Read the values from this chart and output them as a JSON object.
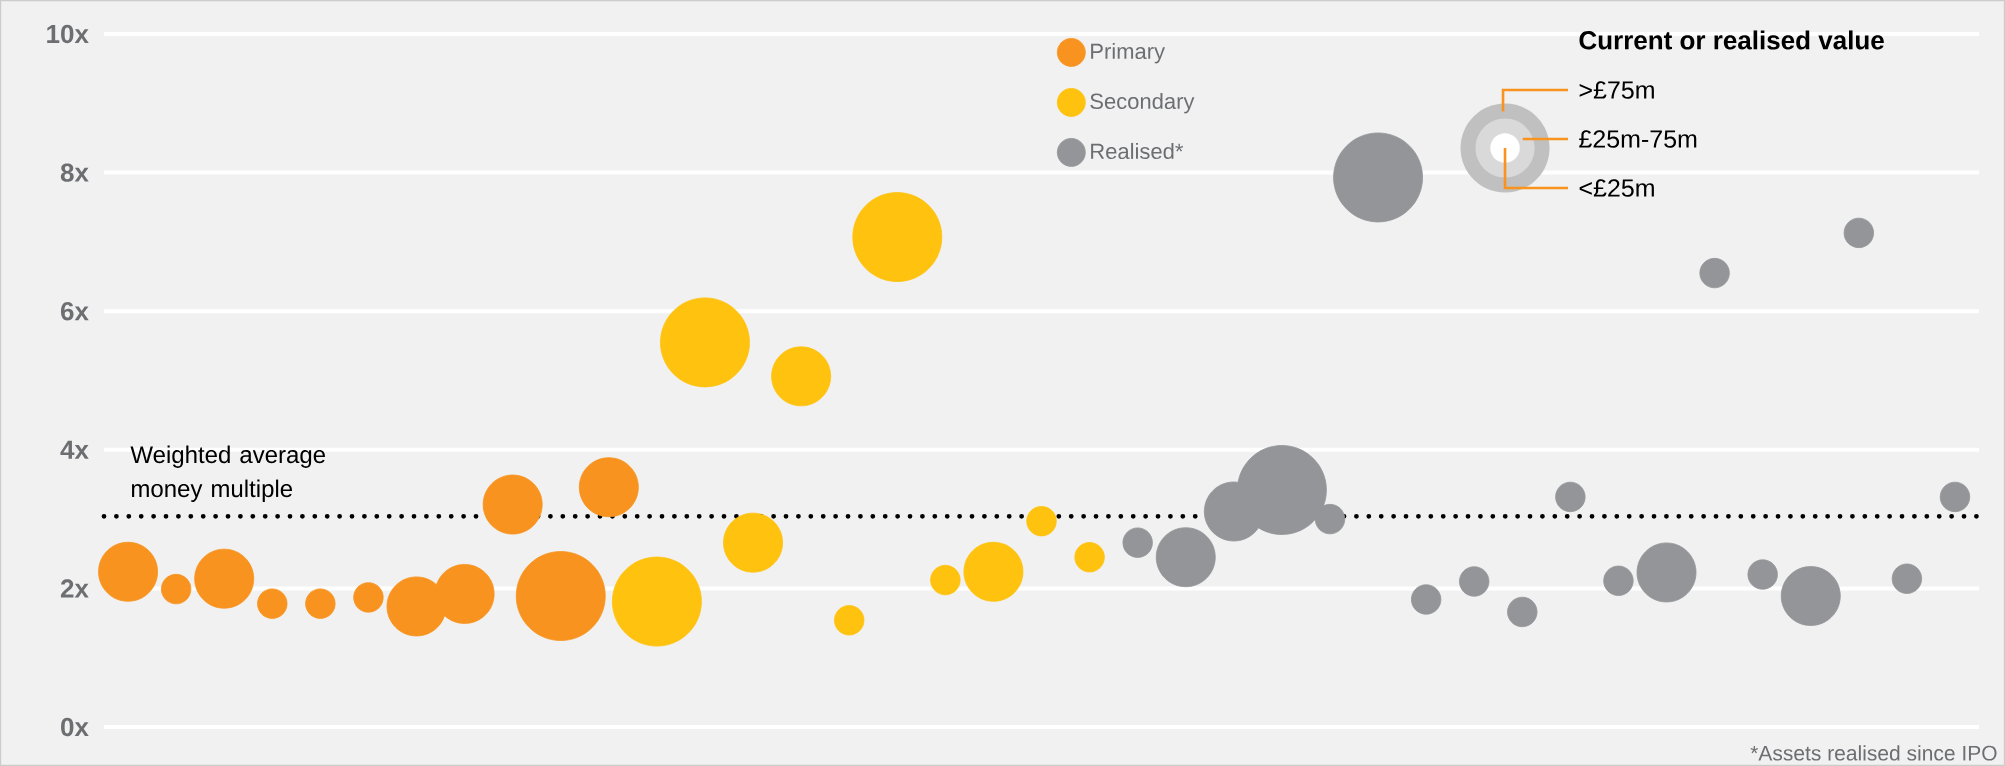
{
  "chart_data": {
    "type": "bubble",
    "categories": [
      null,
      null,
      null,
      null,
      null,
      null,
      null,
      null,
      null,
      null,
      null,
      null,
      null,
      null,
      null,
      null,
      null,
      null,
      null,
      null,
      null,
      null,
      null,
      null,
      null,
      null,
      null,
      null,
      null,
      null,
      null,
      null,
      null,
      null,
      null,
      null,
      null,
      null,
      null
    ],
    "series": [
      {
        "name": "Primary",
        "color": "#f7931e",
        "values": [
          2.24,
          1.99,
          2.14,
          1.78,
          1.78,
          1.87,
          1.74,
          1.92,
          3.21,
          1.89,
          3.46,
          null,
          null,
          null,
          null,
          null,
          null,
          null,
          null,
          null,
          null,
          null,
          null,
          null,
          null,
          null,
          null,
          null,
          null,
          null,
          null,
          null,
          null,
          null,
          null,
          null,
          null,
          null,
          null
        ],
        "sizes": [
          0.44,
          0.11,
          0.44,
          0.11,
          0.11,
          0.11,
          0.44,
          0.44,
          0.44,
          1,
          0.44,
          null,
          null,
          null,
          null,
          null,
          null,
          null,
          null,
          null,
          null,
          null,
          null,
          null,
          null,
          null,
          null,
          null,
          null,
          null,
          null,
          null,
          null,
          null,
          null,
          null,
          null,
          null,
          null
        ]
      },
      {
        "name": "Secondary",
        "color": "#ffc20e",
        "values": [
          null,
          null,
          null,
          null,
          null,
          null,
          null,
          null,
          null,
          null,
          null,
          1.81,
          5.55,
          2.66,
          5.06,
          1.54,
          7.07,
          2.12,
          2.24,
          2.97,
          2.45,
          null,
          null,
          null,
          null,
          null,
          null,
          null,
          null,
          null,
          null,
          null,
          null,
          null,
          null,
          null,
          null,
          null,
          null
        ],
        "sizes": [
          null,
          null,
          null,
          null,
          null,
          null,
          null,
          null,
          null,
          null,
          null,
          1,
          1,
          0.44,
          0.44,
          0.11,
          1,
          0.11,
          0.44,
          0.11,
          0.11,
          null,
          null,
          null,
          null,
          null,
          null,
          null,
          null,
          null,
          null,
          null,
          null,
          null,
          null,
          null,
          null,
          null,
          null
        ]
      },
      {
        "name": "Realised*",
        "color": "#939598",
        "values": [
          null,
          null,
          null,
          null,
          null,
          null,
          null,
          null,
          null,
          null,
          null,
          null,
          null,
          null,
          null,
          null,
          null,
          null,
          null,
          null,
          null,
          2.66,
          2.45,
          3.11,
          3.42,
          3.0,
          7.93,
          1.84,
          2.1,
          1.66,
          3.32,
          2.11,
          2.23,
          6.55,
          2.2,
          1.89,
          7.13,
          2.14,
          3.32
        ],
        "sizes": [
          null,
          null,
          null,
          null,
          null,
          null,
          null,
          null,
          null,
          null,
          null,
          null,
          null,
          null,
          null,
          null,
          null,
          null,
          null,
          null,
          null,
          0.11,
          0.44,
          0.44,
          1,
          0.11,
          1,
          0.11,
          0.11,
          0.11,
          0.11,
          0.11,
          0.44,
          0.11,
          0.11,
          0.44,
          0.11,
          0.11,
          0.11
        ]
      }
    ],
    "ylim": [
      0,
      10
    ],
    "yticks": [
      {
        "value": 0,
        "label": "0x"
      },
      {
        "value": 2,
        "label": "2x"
      },
      {
        "value": 4,
        "label": "4x"
      },
      {
        "value": 6,
        "label": "6x"
      },
      {
        "value": 8,
        "label": "8x"
      },
      {
        "value": 10,
        "label": "10x"
      }
    ],
    "grid": "y",
    "legend": "top",
    "legend_title": "Current or realised value",
    "size_legend": [
      {
        "value": 1,
        "label": ">£75m"
      },
      {
        "value": 0.44,
        "label": "£25m-75m"
      },
      {
        "value": 0.11,
        "label": "<£25m"
      }
    ],
    "ref_lines": [
      {
        "axis": "y",
        "value": 3.04,
        "label": "Weighted average money multiple",
        "color": "#000000",
        "line_style": "dotted"
      }
    ],
    "annotations": [
      "*Assets realised since IPO"
    ]
  }
}
